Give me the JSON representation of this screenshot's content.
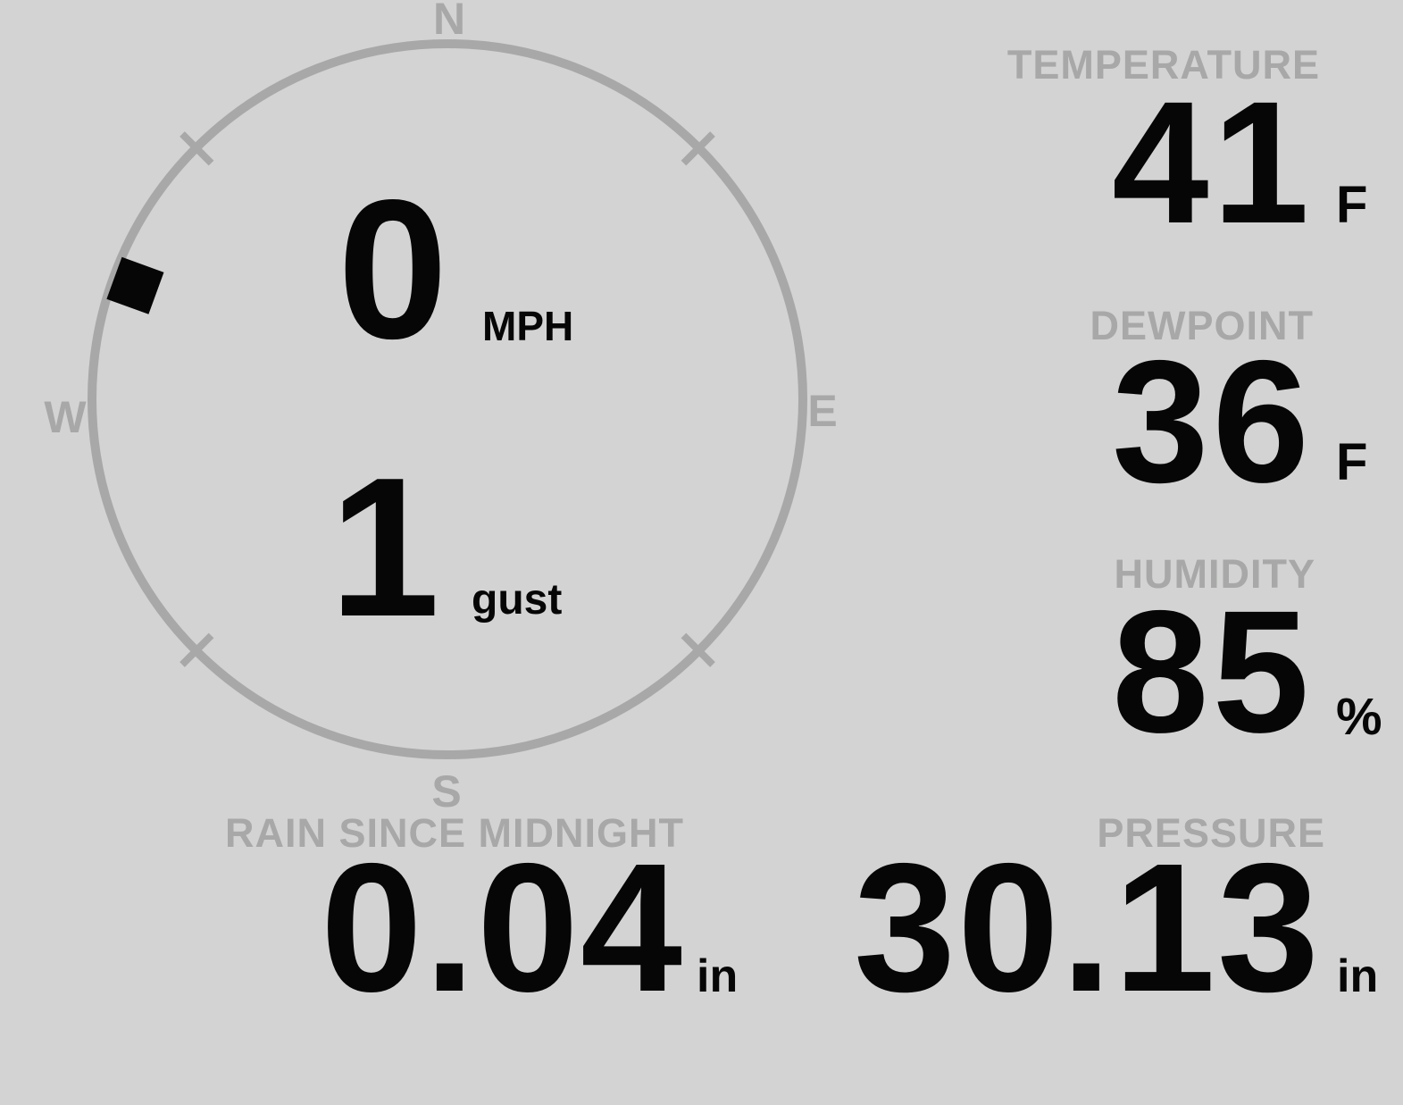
{
  "colors": {
    "background": "#d2d3d2",
    "muted": "#a8a8a8",
    "ink": "#060606"
  },
  "wind_gauge": {
    "compass_points": {
      "north": "N",
      "east": "E",
      "south": "S",
      "west": "W"
    },
    "speed_value": "0",
    "speed_unit": "MPH",
    "gust_value": "1",
    "gust_unit": "gust",
    "direction_degrees": 290
  },
  "metrics": {
    "temperature": {
      "label": "TEMPERATURE",
      "value": "41",
      "unit": "F"
    },
    "dewpoint": {
      "label": "DEWPOINT",
      "value": "36",
      "unit": "F"
    },
    "humidity": {
      "label": "HUMIDITY",
      "value": "85",
      "unit": "%"
    },
    "rain_since_midnight": {
      "label": "RAIN SINCE MIDNIGHT",
      "value": "0.04",
      "unit": "in"
    },
    "pressure": {
      "label": "PRESSURE",
      "value": "30.13",
      "unit": "in"
    }
  }
}
